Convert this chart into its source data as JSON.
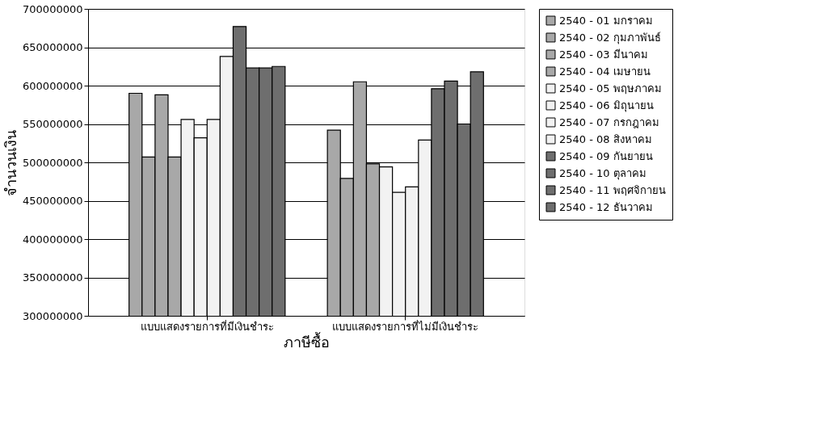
{
  "chart_data": {
    "type": "bar",
    "xlabel": "ภาษีซื้อ",
    "ylabel": "จำนวนเงิน",
    "categories": [
      "แบบแสดงรายการที่มีเงินชำระ",
      "แบบแสดงรายการที่ไม่มีเงินชำระ"
    ],
    "series": [
      {
        "name": "2540 - 01 มกราคม",
        "color": "#a8a8a8",
        "values": [
          590000000,
          542000000
        ]
      },
      {
        "name": "2540 - 02 กุมภาพันธ์",
        "color": "#a8a8a8",
        "values": [
          507000000,
          479000000
        ]
      },
      {
        "name": "2540 - 03 มีนาคม",
        "color": "#a8a8a8",
        "values": [
          588000000,
          605000000
        ]
      },
      {
        "name": "2540 - 04 เมษายน",
        "color": "#a8a8a8",
        "values": [
          507000000,
          498000000
        ]
      },
      {
        "name": "2540 - 05 พฤษภาคม",
        "color": "#f2f2f2",
        "values": [
          556000000,
          494000000
        ]
      },
      {
        "name": "2540 - 06 มิถุนายน",
        "color": "#f2f2f2",
        "values": [
          532000000,
          461000000
        ]
      },
      {
        "name": "2540 - 07 กรกฎาคม",
        "color": "#f2f2f2",
        "values": [
          556000000,
          468000000
        ]
      },
      {
        "name": "2540 - 08 สิงหาคม",
        "color": "#f2f2f2",
        "values": [
          638000000,
          529000000
        ]
      },
      {
        "name": "2540 - 09 กันยายน",
        "color": "#6e6e6e",
        "values": [
          677000000,
          596000000
        ]
      },
      {
        "name": "2540 - 10 ตุลาคม",
        "color": "#6e6e6e",
        "values": [
          623000000,
          606000000
        ]
      },
      {
        "name": "2540 - 11 พฤศจิกายน",
        "color": "#6e6e6e",
        "values": [
          623000000,
          550000000
        ]
      },
      {
        "name": "2540 - 12 ธันวาคม",
        "color": "#6e6e6e",
        "values": [
          625000000,
          618000000
        ]
      }
    ],
    "ylim": [
      300000000,
      700000000
    ],
    "yticks": [
      300000000,
      350000000,
      400000000,
      450000000,
      500000000,
      550000000,
      600000000,
      650000000,
      700000000
    ],
    "grid": "y",
    "legend": "right"
  }
}
